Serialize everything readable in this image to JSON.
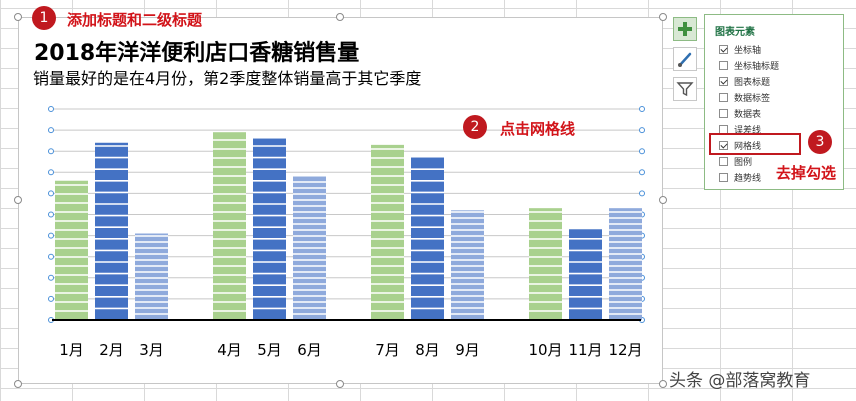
{
  "chart": {
    "title": "2018年洋洋便利店口香糖销售量",
    "subtitle": "销量最好的是在4月份，第2季度整体销量高于其它季度"
  },
  "chart_data": {
    "type": "bar",
    "categories": [
      "1月",
      "2月",
      "3月",
      "4月",
      "5月",
      "6月",
      "7月",
      "8月",
      "9月",
      "10月",
      "11月",
      "12月"
    ],
    "values": [
      66,
      84,
      41,
      89,
      86,
      68,
      83,
      77,
      52,
      53,
      43,
      53
    ],
    "ylim": [
      0,
      100
    ],
    "grid": true,
    "legend": "none",
    "colors": [
      "#a9d18e",
      "#4472c4",
      "#8faadc"
    ]
  },
  "annotations": {
    "step1": {
      "number": "1",
      "text": "添加标题和二级标题"
    },
    "step2": {
      "number": "2",
      "text": "点击网格线"
    },
    "step3": {
      "number": "3",
      "text": "去掉勾选"
    }
  },
  "chart_tools": {
    "buttons": [
      {
        "icon": "plus-icon"
      },
      {
        "icon": "brush-icon"
      },
      {
        "icon": "filter-icon"
      }
    ],
    "panel_title": "图表元素",
    "items": [
      {
        "label": "坐标轴",
        "checked": true
      },
      {
        "label": "坐标轴标题",
        "checked": false
      },
      {
        "label": "图表标题",
        "checked": true
      },
      {
        "label": "数据标签",
        "checked": false
      },
      {
        "label": "数据表",
        "checked": false
      },
      {
        "label": "误差线",
        "checked": false
      },
      {
        "label": "网格线",
        "checked": true
      },
      {
        "label": "图例",
        "checked": false
      },
      {
        "label": "趋势线",
        "checked": false
      }
    ]
  },
  "watermark": "头条 @部落窝教育"
}
